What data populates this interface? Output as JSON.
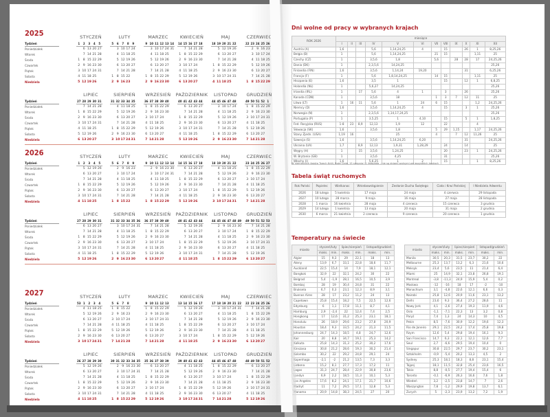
{
  "calendar": {
    "weekday_labels": [
      "Tydzień",
      "Poniedziałek",
      "Wtorek",
      "Środa",
      "Czwartek",
      "Piątek",
      "Sobota",
      "Niedziela"
    ],
    "months": [
      "STYCZEŃ",
      "LUTY",
      "MARZEC",
      "KWIECIEŃ",
      "MAJ",
      "CZERWIEC",
      "LIPIEC",
      "SIERPIEŃ",
      "WRZESIEŃ",
      "PAŹDZIERNIK",
      "LISTOPAD",
      "GRUDZIEŃ"
    ],
    "years": [
      2025,
      2026,
      2027
    ],
    "accent": "#b0232a"
  },
  "holidays": {
    "title": "Dni wolne od pracy w wybranych krajach",
    "year_header": "ROK 2026",
    "months_header": "miesiące",
    "month_cols": [
      "I",
      "II",
      "III",
      "IV",
      "V",
      "VI",
      "VII",
      "VIII",
      "IX",
      "X",
      "XI",
      "XII"
    ],
    "rows": [
      [
        "Austria (A)",
        "1,6",
        "",
        "",
        "5,6",
        "1,14,24,25",
        "4",
        "",
        "15",
        "",
        "26",
        "1",
        "8,25,26"
      ],
      [
        "Belgia (B)",
        "1",
        "",
        "",
        "5,6",
        "1,14,24,25",
        "",
        "21",
        "15",
        "",
        "",
        "1,11",
        "25"
      ],
      [
        "Czechy (CZ)",
        "1",
        "",
        "",
        "3,5,6",
        "1,8",
        "",
        "5,6",
        "",
        "28",
        "28",
        "17",
        "24,25,26"
      ],
      [
        "Dania (DK)",
        "1",
        "",
        "",
        "2,3,5,6",
        "14,24,25",
        "",
        "",
        "",
        "",
        "",
        "",
        "25,26"
      ],
      [
        "Finlandia (FIN)",
        "1,6",
        "",
        "",
        "3,5,6",
        "1,14,24",
        "19,20",
        "",
        "",
        "",
        "31",
        "",
        "6,25,26"
      ],
      [
        "Francja (F)",
        "1",
        "",
        "",
        "5,6",
        "1,8,14,24,25",
        "",
        "14",
        "15",
        "",
        "",
        "1,11",
        "25"
      ],
      [
        "Hiszpania (E)",
        "1,6",
        "",
        "",
        "3,5",
        "1",
        "",
        "",
        "15",
        "",
        "12",
        "1",
        "6,8,25"
      ],
      [
        "Holandia (NL)",
        "1",
        "",
        "",
        "5,6,27",
        "14,24,25",
        "",
        "",
        "",
        "",
        "",
        "",
        "25,26"
      ],
      [
        "Irlandia (IRL)",
        "1",
        "",
        "17",
        "5,6",
        "4",
        "1",
        "",
        "3",
        "",
        "26",
        "",
        "25,26"
      ],
      [
        "Kanada (CDN)",
        "1",
        "",
        "",
        "3,5,6",
        "18",
        "",
        "1",
        "3",
        "7",
        "12",
        "11",
        "25"
      ],
      [
        "Litwa (LT)",
        "1",
        "16",
        "11",
        "5,6",
        "1",
        "24",
        "6",
        "15",
        "",
        "",
        "1,2",
        "24,25,26"
      ],
      [
        "Niemcy (D)",
        "1,6",
        "",
        "",
        "3,5,6",
        "1,14,24,25",
        "4",
        "",
        "15",
        "",
        "3",
        "1",
        "25,26"
      ],
      [
        "Norwegia (N)",
        "1",
        "",
        "",
        "2,3,5,6",
        "1,14,17,24,25",
        "",
        "",
        "",
        "",
        "",
        "",
        "25,26"
      ],
      [
        "Portugalia (P)",
        "1",
        "",
        "",
        "3,5,25",
        "1",
        "4,10",
        "",
        "15",
        "",
        "5",
        "1",
        "1,8,25"
      ],
      [
        "Fed. Rosyjska (RUS)",
        "1-8",
        "23",
        "8,9",
        "12,13",
        "1,9",
        "12",
        "",
        "22",
        "",
        "",
        "4",
        ""
      ],
      [
        "Słowacja (SK)",
        "1,6",
        "",
        "",
        "3,5,6",
        "1,8",
        "",
        "5",
        "29",
        "1,15",
        "",
        "1,17",
        "24,25,26"
      ],
      [
        "Stany Zjedn. (USA)",
        "1,19",
        "16",
        "",
        "",
        "25",
        "",
        "4",
        "",
        "7",
        "12",
        "11,26",
        "25"
      ],
      [
        "Szwecja (S)",
        "1,6",
        "",
        "",
        "3,5,6",
        "1,14,24,25",
        "6,20",
        "",
        "",
        "",
        "31",
        "",
        "24,25,26"
      ],
      [
        "Ukraina (UA)",
        "1,7",
        "",
        "8,9",
        "12,13",
        "1,9,31",
        "1,28,29",
        "",
        "24",
        "",
        "14",
        "",
        "25"
      ],
      [
        "Węgry (H)",
        "1",
        "",
        "15",
        "3,5,6",
        "1,24,25",
        "",
        "",
        "20",
        "",
        "23",
        "1",
        "24,25,26"
      ],
      [
        "W. Brytania (GB)",
        "1",
        "",
        "",
        "3,5,6",
        "4,25",
        "",
        "",
        "31",
        "",
        "",
        "",
        "25,26"
      ],
      [
        "Włochy (I)",
        "1,6",
        "",
        "",
        "5,6,25",
        "1",
        "2",
        "",
        "15",
        "",
        "",
        "1",
        "8,25,26"
      ]
    ],
    "note": "W niemieckich święta Trzech Króli, Boże Ciało, 15 sierpnia i 1 listopada – nie są dniami wolnymi we wszystkich landach"
  },
  "movable": {
    "title": "Tabela świąt ruchomych",
    "headers": [
      "Rok Pański",
      "Popielec",
      "Wielkanoc",
      "Wniebowstąpienie",
      "Zesłanie Ducha Świętego",
      "Ciała i Krwi Pańskiej",
      "I Niedziela Adwentu"
    ],
    "rows": [
      [
        "2026",
        "18 lutego",
        "5 kwietnia",
        "17 maja",
        "24 maja",
        "4 czerwca",
        "29 listopada"
      ],
      [
        "2027",
        "10 lutego",
        "28 marca",
        "9 maja",
        "16 maja",
        "27 maja",
        "28 listopada"
      ],
      [
        "2028",
        "1 marca",
        "16 kwietnia",
        "28 maja",
        "4 czerwca",
        "15 czerwca",
        "3 grudnia"
      ],
      [
        "2029",
        "14 lutego",
        "1 kwietnia",
        "13 maja",
        "20 maja",
        "31 maja",
        "2 grudnia"
      ],
      [
        "2030",
        "6 marca",
        "21 kwietnia",
        "2 czerwca",
        "9 czerwca",
        "20 czerwca",
        "1 grudnia"
      ]
    ]
  },
  "temperatures": {
    "title": "Temperatury na świecie",
    "city_header": "miasto",
    "period_headers": [
      "styczeń/luty",
      "lipiec/sierpień",
      "listopad/grudzień"
    ],
    "sub_headers": [
      "maks.",
      "min."
    ],
    "left": [
      [
        "Algier",
        "15",
        "9,3",
        "29",
        "22,1",
        "18",
        "13"
      ],
      [
        "Ateny",
        "13,9",
        "6,7",
        "33,1",
        "22,8",
        "18,6",
        "11,7"
      ],
      [
        "Auckland",
        "22,5",
        "15,4",
        "14",
        "7,9",
        "18,1",
        "12,1"
      ],
      [
        "Bangkok",
        "32,9",
        "22",
        "32,1",
        "24,2",
        "30",
        "22"
      ],
      [
        "Belgrad",
        "5,4",
        "-1,9",
        "28,1",
        "16,5",
        "10,5",
        "3,9"
      ],
      [
        "Bombaj",
        "28",
        "19",
        "30,4",
        "24,8",
        "31",
        "22"
      ],
      [
        "Bruksela",
        "6,7",
        "0,3",
        "23,1",
        "12,3",
        "8,9",
        "3,1"
      ],
      [
        "Buenos Aires",
        "28",
        "17",
        "23,2",
        "11,2",
        "24",
        "13"
      ],
      [
        "Capetown",
        "25,8",
        "15,4",
        "18,2",
        "7,5",
        "22,5",
        "12,6"
      ],
      [
        "Edynburg",
        "6",
        "1,1",
        "17,8",
        "11,1",
        "8,7",
        "4,1"
      ],
      [
        "Hamburg",
        "2,9",
        "-2,4",
        "22",
        "12,4",
        "7,4",
        "2,5"
      ],
      [
        "Hongkong",
        "17",
        "12,6",
        "31,2",
        "25,3",
        "23,1",
        "18,1"
      ],
      [
        "Honolulu",
        "26",
        "18,9",
        "29,6",
        "23,2",
        "27,8",
        "20,9"
      ],
      [
        "Houston",
        "18,4",
        "9,3",
        "33,5",
        "24,2",
        "21,3",
        "11,5"
      ],
      [
        "Johannesburg",
        "24,7",
        "14,3",
        "18,5",
        "4,8",
        "24,7",
        "12,6"
      ],
      [
        "Kair",
        "20",
        "8,8",
        "34,7",
        "19,1",
        "25,3",
        "14,2"
      ],
      [
        "Kalkuta",
        "25,8",
        "14,3",
        "31,3",
        "25,2",
        "30,2",
        "17,6"
      ],
      [
        "Kinszasa",
        "30,8",
        "21,2",
        "28,6",
        "19,3",
        "30,2",
        "21,4"
      ],
      [
        "Kolombo",
        "30,2",
        "22",
        "29,2",
        "24,8",
        "29,1",
        "24"
      ],
      [
        "Kopenhaga",
        "-2,1",
        "-2",
        "21,2",
        "13,5",
        "7,3",
        "3,3"
      ],
      [
        "Lizbona",
        "15,2",
        "8,1",
        "27,7",
        "17,3",
        "17,2",
        "11"
      ],
      [
        "Lagos",
        "31,3",
        "24,7",
        "28,4",
        "22,9",
        "30,8",
        "23,6"
      ],
      [
        "Londyn",
        "6,9",
        "2,2",
        "18,5",
        "11,3",
        "10,1",
        "5,3"
      ],
      [
        "Los Angeles",
        "17,6",
        "8,2",
        "24,1",
        "17,1",
        "21,7",
        "10,6"
      ],
      [
        "Madryt",
        "11",
        "7,2",
        "29,5",
        "17,1",
        "12,8",
        "5,3"
      ],
      [
        "Manama",
        "20,9",
        "14,8",
        "38,3",
        "24,5",
        "27",
        "20"
      ]
    ],
    "right": [
      [
        "Manila",
        "30,5",
        "20,3",
        "31,5",
        "23,7",
        "30,2",
        "22"
      ],
      [
        "Melbourne",
        "25,3",
        "13,7",
        "13,2",
        "6,3",
        "21,6",
        "10,6"
      ],
      [
        "Meksyk",
        "23,4",
        "5,6",
        "23,5",
        "11",
        "21,4",
        "6,4"
      ],
      [
        "Miami",
        "25",
        "14,9",
        "32,1",
        "23,8",
        "26,8",
        "19,1"
      ],
      [
        "Montreal",
        "-3,8",
        "-11,3",
        "24,9",
        "15,9",
        "5,4",
        "0,2"
      ],
      [
        "Moskwa",
        "-12",
        "-16",
        "18",
        "17",
        "-2",
        "-10"
      ],
      [
        "Monachium",
        "3,1",
        "-4,8",
        "22,6",
        "12,1",
        "6,6",
        "0,3"
      ],
      [
        "Nairobi",
        "25,8",
        "12,6",
        "20,9",
        "11,6",
        "23,1",
        "13,2"
      ],
      [
        "Delhi",
        "23,6",
        "9,3",
        "36,4",
        "27,2",
        "28,6",
        "11"
      ],
      [
        "Nowy Jork",
        "4,1",
        "-2,6",
        "27,4",
        "19,3",
        "11,9",
        "4,6"
      ],
      [
        "Oslo",
        "-1,1",
        "-7,1",
        "22,3",
        "13",
        "3,2",
        "0,8"
      ],
      [
        "Paryż",
        "7,4",
        "1,3",
        "24",
        "14,3",
        "10",
        "4,5"
      ],
      [
        "Pekin",
        "8,5",
        "-7,6",
        "30,9",
        "12,2",
        "19,6",
        "12,3"
      ],
      [
        "Rio de Janeiro",
        "29,1",
        "22,5",
        "24,2",
        "17,4",
        "25,8",
        "19,8"
      ],
      [
        "Rzym",
        "12,6",
        "5,4",
        "29,8",
        "19,4",
        "16,1",
        "9,3"
      ],
      [
        "San Francisco",
        "14,7",
        "6,3",
        "22,1",
        "12,1",
        "12,6",
        "7,7"
      ],
      [
        "Seul",
        "2,7",
        "-6,6",
        "29,5",
        "19,4",
        "10,4",
        "0"
      ],
      [
        "Singapur",
        "30,8",
        "22,5",
        "29,7",
        "23,7",
        "30,2",
        "23,1"
      ],
      [
        "Sztokholm",
        "-0,9",
        "-5,4",
        "20,2",
        "13,3",
        "4,5",
        "2"
      ],
      [
        "Sydney",
        "25,3",
        "18,1",
        "18,3",
        "8,8",
        "23,1",
        "15,4"
      ],
      [
        "Tajpej",
        "18,1",
        "11,5",
        "32,8",
        "25,4",
        "23,6",
        "16,5"
      ],
      [
        "Tokio",
        "8,8",
        "-0,5",
        "27,7",
        "19,4",
        "15,4",
        "6"
      ],
      [
        "Toronto",
        "-0,1",
        "-6,9",
        "26,3",
        "16,6",
        "7,6",
        "1,8"
      ],
      [
        "Wiedeń",
        "3,2",
        "-2,5",
        "23,8",
        "14,7",
        "7",
        "2,6"
      ],
      [
        "Waszyngton",
        "7,8",
        "-1,2",
        "29,9",
        "19,8",
        "13,7",
        "6,1"
      ],
      [
        "Zurych",
        "5",
        "-2,3",
        "23,9",
        "13,2",
        "7,2",
        "1,9"
      ]
    ]
  }
}
